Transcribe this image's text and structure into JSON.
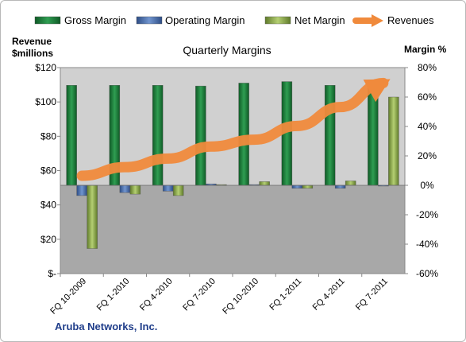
{
  "legend": [
    {
      "label": "Gross Margin",
      "color": "#1e7a3a",
      "shape": "bar"
    },
    {
      "label": "Operating Margin",
      "color": "#4a6fa8",
      "shape": "bar"
    },
    {
      "label": "Net Margin",
      "color": "#8aa84a",
      "shape": "bar"
    },
    {
      "label": "Revenues",
      "color": "#f08a3c",
      "shape": "arrow"
    }
  ],
  "footer": {
    "company": "Aruba Networks, Inc."
  },
  "chart_data": {
    "type": "bar",
    "title": "Quarterly Margins",
    "left_axis_label_lines": [
      "Revenue",
      "$millions"
    ],
    "right_axis_label": "Margin %",
    "categories": [
      "FQ 10-2009",
      "FQ 1-2010",
      "FQ 4-2010",
      "FQ 7-2010",
      "FQ 10-2010",
      "FQ 1-2011",
      "FQ 4-2011",
      "FQ 7-2011"
    ],
    "y_left": {
      "min": 0,
      "max": 120,
      "ticks": [
        0,
        20,
        40,
        60,
        80,
        100,
        120
      ],
      "tick_labels": [
        "$-",
        "$20",
        "$40",
        "$60",
        "$80",
        "$100",
        "$120"
      ]
    },
    "y_right": {
      "min": -60,
      "max": 80,
      "ticks": [
        -60,
        -40,
        -20,
        0,
        20,
        40,
        60,
        80
      ],
      "tick_labels": [
        "-60%",
        "-40%",
        "-20%",
        "0%",
        "20%",
        "40%",
        "60%",
        "80%"
      ]
    },
    "series": [
      {
        "name": "Gross Margin",
        "axis": "right",
        "values": [
          68,
          68,
          68,
          67.5,
          69.5,
          70.5,
          68,
          69
        ]
      },
      {
        "name": "Operating Margin",
        "axis": "right",
        "values": [
          -7,
          -5,
          -4,
          1,
          0.5,
          -2,
          -2,
          0
        ]
      },
      {
        "name": "Net Margin",
        "axis": "right",
        "values": [
          -43,
          -6,
          -7,
          0.5,
          2.5,
          -2,
          3,
          60
        ]
      },
      {
        "name": "Revenues",
        "axis": "left",
        "values": [
          57,
          62,
          67,
          74,
          78,
          86,
          97,
          111
        ]
      }
    ],
    "grid": false,
    "legend_position": "top",
    "colors": {
      "gross": "#1e7a3a",
      "operating": "#4a6fa8",
      "net": "#8aa84a",
      "revenue": "#f08a3c",
      "plot_upper": "#d0d0d0",
      "plot_lower": "#a8a8a8"
    }
  }
}
